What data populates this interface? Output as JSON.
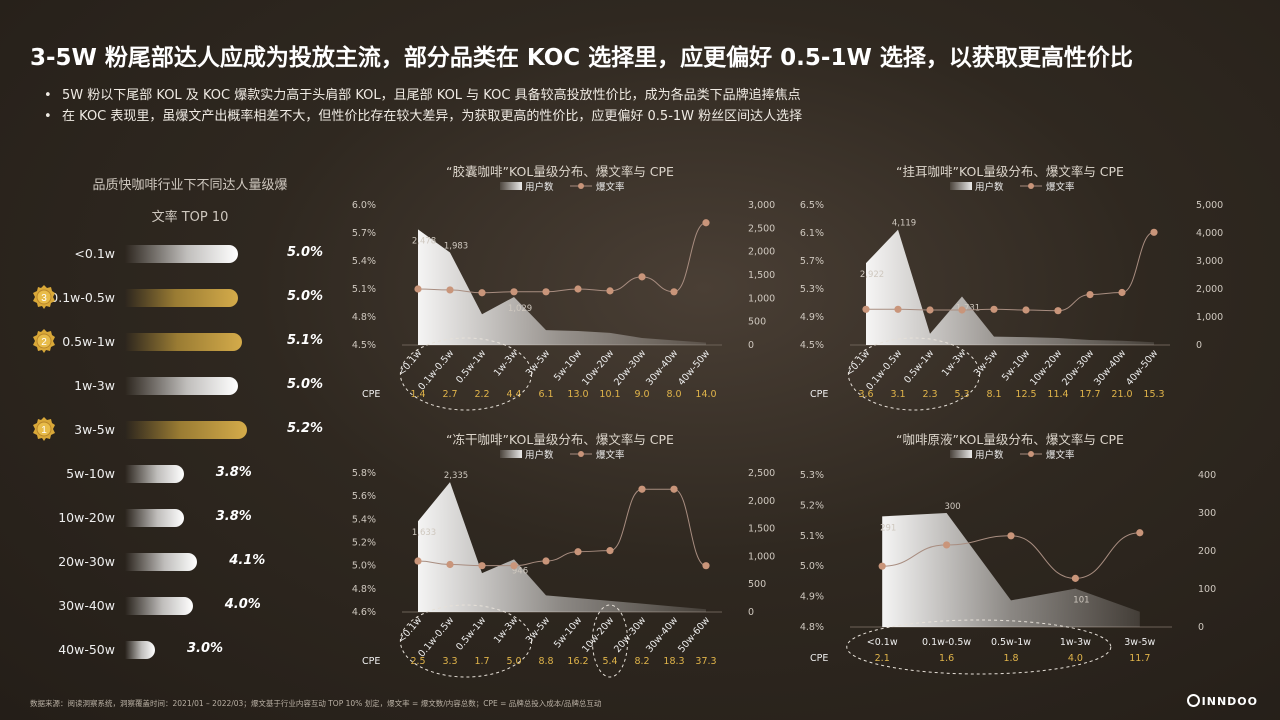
{
  "title": "3-5W 粉尾部达人应成为投放主流，部分品类在 KOC 选择里，应更偏好 0.5-1W 选择，以获取更高性价比",
  "bullets": [
    "5W 粉以下尾部 KOL 及 KOC 爆款实力高于头肩部 KOL，且尾部 KOL 与 KOC 具备较高投放性价比，成为各品类下品牌追捧焦点",
    "在 KOC 表现里，虽爆文产出概率相差不大，但性价比存在较大差异，为获取更高的性价比，应更偏好 0.5-1W 粉丝区间达人选择"
  ],
  "left_panel": {
    "title_line1": "品质快咖啡行业下不同达人量级爆",
    "title_line2": "文率 TOP 10",
    "rows": [
      {
        "label": "<0.1w",
        "value": 5.0,
        "text": "5.0%",
        "gold": false,
        "medal": ""
      },
      {
        "label": "0.1w-0.5w",
        "value": 5.0,
        "text": "5.0%",
        "gold": true,
        "medal": "3"
      },
      {
        "label": "0.5w-1w",
        "value": 5.1,
        "text": "5.1%",
        "gold": true,
        "medal": "2"
      },
      {
        "label": "1w-3w",
        "value": 5.0,
        "text": "5.0%",
        "gold": false,
        "medal": ""
      },
      {
        "label": "3w-5w",
        "value": 5.2,
        "text": "5.2%",
        "gold": true,
        "medal": "1"
      },
      {
        "label": "5w-10w",
        "value": 3.8,
        "text": "3.8%",
        "gold": false,
        "medal": ""
      },
      {
        "label": "10w-20w",
        "value": 3.8,
        "text": "3.8%",
        "gold": false,
        "medal": ""
      },
      {
        "label": "20w-30w",
        "value": 4.1,
        "text": "4.1%",
        "gold": false,
        "medal": ""
      },
      {
        "label": "30w-40w",
        "value": 4.0,
        "text": "4.0%",
        "gold": false,
        "medal": ""
      },
      {
        "label": "40w-50w",
        "value": 3.0,
        "text": "3.0%",
        "gold": false,
        "medal": ""
      }
    ]
  },
  "legend": {
    "users": "用户数",
    "rate": "爆文率"
  },
  "cpe_label": "CPE",
  "chart_data": [
    {
      "type": "bar",
      "title": "品质快咖啡行业下不同达人量级爆文率 TOP 10",
      "categories": [
        "<0.1w",
        "0.1w-0.5w",
        "0.5w-1w",
        "1w-3w",
        "3w-5w",
        "5w-10w",
        "10w-20w",
        "20w-30w",
        "30w-40w",
        "40w-50w"
      ],
      "values": [
        5.0,
        5.0,
        5.1,
        5.0,
        5.2,
        3.8,
        3.8,
        4.1,
        4.0,
        3.0
      ],
      "unit": "%"
    },
    {
      "type": "area",
      "title": "“胶囊咖啡”KOL量级分布、爆文率与 CPE",
      "categories": [
        "<0.1w",
        "0.1w-0.5w",
        "0.5w-1w",
        "1w-3w",
        "3w-5w",
        "5w-10w",
        "10w-20w",
        "20w-30w",
        "30w-40w",
        "40w-50w"
      ],
      "series": [
        {
          "name": "用户数",
          "axis": "right",
          "values": [
            2478,
            1983,
            660,
            1029,
            320,
            300,
            260,
            150,
            100,
            50
          ]
        },
        {
          "name": "爆文率",
          "axis": "left",
          "values": [
            5.1,
            5.09,
            5.06,
            5.07,
            5.07,
            5.1,
            5.08,
            5.23,
            5.07,
            5.81
          ]
        }
      ],
      "data_labels": [
        "2,478",
        "1,983",
        "1,029"
      ],
      "cpe": [
        "1.4",
        "2.7",
        "2.2",
        "4.4",
        "6.1",
        "13.0",
        "10.1",
        "9.0",
        "8.0",
        "14.0"
      ],
      "ylim_left": [
        4.5,
        6.0
      ],
      "yticks_left": [
        "6.0%",
        "5.7%",
        "5.4%",
        "5.1%",
        "4.8%",
        "4.5%"
      ],
      "ylim_right": [
        0,
        3000
      ],
      "yticks_right": [
        "3,000",
        "2,500",
        "2,000",
        "1,500",
        "1,000",
        "500",
        "0"
      ],
      "highlight": [
        0,
        3
      ]
    },
    {
      "type": "area",
      "title": "“挂耳咖啡”KOL量级分布、爆文率与 CPE",
      "categories": [
        "<0.1w",
        "0.1w-0.5w",
        "0.5w-1w",
        "1w-3w",
        "3w-5w",
        "5w-10w",
        "10w-20w",
        "20w-30w",
        "30w-40w",
        "40w-50w"
      ],
      "series": [
        {
          "name": "用户数",
          "axis": "right",
          "values": [
            2922,
            4119,
            400,
            1731,
            300,
            280,
            250,
            180,
            150,
            100
          ]
        },
        {
          "name": "爆文率",
          "axis": "left",
          "values": [
            5.01,
            5.01,
            5.0,
            5.0,
            5.01,
            5.0,
            4.99,
            5.22,
            5.25,
            6.11
          ]
        }
      ],
      "data_labels": [
        "2,922",
        "4,119",
        "1,731"
      ],
      "cpe": [
        "3.6",
        "3.1",
        "2.3",
        "5.3",
        "8.1",
        "12.5",
        "11.4",
        "17.7",
        "21.0",
        "15.3"
      ],
      "ylim_left": [
        4.5,
        6.5
      ],
      "yticks_left": [
        "6.5%",
        "6.1%",
        "5.7%",
        "5.3%",
        "4.9%",
        "4.5%"
      ],
      "ylim_right": [
        0,
        5000
      ],
      "yticks_right": [
        "5,000",
        "4,000",
        "3,000",
        "2,000",
        "1,000",
        "0"
      ],
      "highlight": [
        0,
        3
      ]
    },
    {
      "type": "area",
      "title": "“冻干咖啡”KOL量级分布、爆文率与 CPE",
      "categories": [
        "<0.1w",
        "0.1w-0.5w",
        "0.5w-1w",
        "1w-3w",
        "3w-5w",
        "5w-10w",
        "10w-20w",
        "20w-30w",
        "30w-40w",
        "50w-60w"
      ],
      "series": [
        {
          "name": "用户数",
          "axis": "right",
          "values": [
            1633,
            2335,
            700,
            946,
            300,
            250,
            200,
            150,
            100,
            50
          ]
        },
        {
          "name": "爆文率",
          "axis": "left",
          "values": [
            5.04,
            5.01,
            5.0,
            5.0,
            5.04,
            5.12,
            5.13,
            5.66,
            5.66,
            5.0
          ]
        }
      ],
      "data_labels": [
        "1,633",
        "2,335",
        "946"
      ],
      "cpe": [
        "2.5",
        "3.3",
        "1.7",
        "5.0",
        "8.8",
        "16.2",
        "5.4",
        "8.2",
        "18.3",
        "37.3"
      ],
      "ylim_left": [
        4.6,
        5.8
      ],
      "yticks_left": [
        "5.8%",
        "5.6%",
        "5.4%",
        "5.2%",
        "5.0%",
        "4.8%",
        "4.6%"
      ],
      "ylim_right": [
        0,
        2500
      ],
      "yticks_right": [
        "2,500",
        "2,000",
        "1,500",
        "1,000",
        "500",
        "0"
      ],
      "highlight": [
        0,
        3
      ],
      "highlight2": [
        6,
        6
      ]
    },
    {
      "type": "area",
      "title": "“咖啡原液”KOL量级分布、爆文率与 CPE",
      "categories": [
        "<0.1w",
        "0.1w-0.5w",
        "0.5w-1w",
        "1w-3w",
        "3w-5w"
      ],
      "series": [
        {
          "name": "用户数",
          "axis": "right",
          "values": [
            291,
            300,
            70,
            101,
            40
          ]
        },
        {
          "name": "爆文率",
          "axis": "left",
          "values": [
            5.0,
            5.07,
            5.1,
            4.96,
            5.11
          ]
        }
      ],
      "data_labels": [
        "291",
        "300",
        "101"
      ],
      "cpe": [
        "2.1",
        "1.6",
        "1.8",
        "4.0",
        "11.7"
      ],
      "ylim_left": [
        4.8,
        5.3
      ],
      "yticks_left": [
        "5.3%",
        "5.2%",
        "5.1%",
        "5.0%",
        "4.9%",
        "4.8%"
      ],
      "ylim_right": [
        0,
        400
      ],
      "yticks_right": [
        "400",
        "300",
        "200",
        "100",
        "0"
      ],
      "highlight": [
        0,
        3
      ]
    }
  ],
  "footer": "数据来源：阅读洞察系统，洞察覆盖时间：2021/01 – 2022/03；爆文基于行业内容互动 TOP 10% 划定，爆文率 = 爆文数/内容总数；CPE = 品牌总投入成本/品牌总互动",
  "logo": "INNDOO",
  "colors": {
    "gold": "#d4ab4a",
    "cpe": "#e0b44a",
    "dot": "#c9957a",
    "line": "#a88d80"
  }
}
